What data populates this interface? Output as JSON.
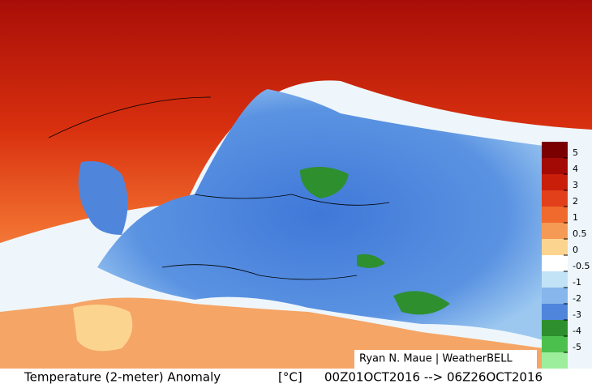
{
  "title": "Temperature (2-meter) Anomaly",
  "unit": "[°C]",
  "period": "00Z01OCT2016 --> 06Z26OCT2016",
  "credit": "Ryan N. Maue | WeatherBELL",
  "colorbar": {
    "ticks": [
      5,
      4,
      3,
      2,
      1,
      0.5,
      0,
      -0.5,
      -1,
      -2,
      -3,
      -4,
      -5
    ],
    "colors": [
      "#7a0000",
      "#a30a05",
      "#c81e0a",
      "#e2401a",
      "#ef6a2c",
      "#f59a55",
      "#fbd590",
      "#ffffff",
      "#c2e3f6",
      "#86b6ec",
      "#4f86dc",
      "#2e8f2e",
      "#4cc04c",
      "#9cee9c"
    ]
  }
}
